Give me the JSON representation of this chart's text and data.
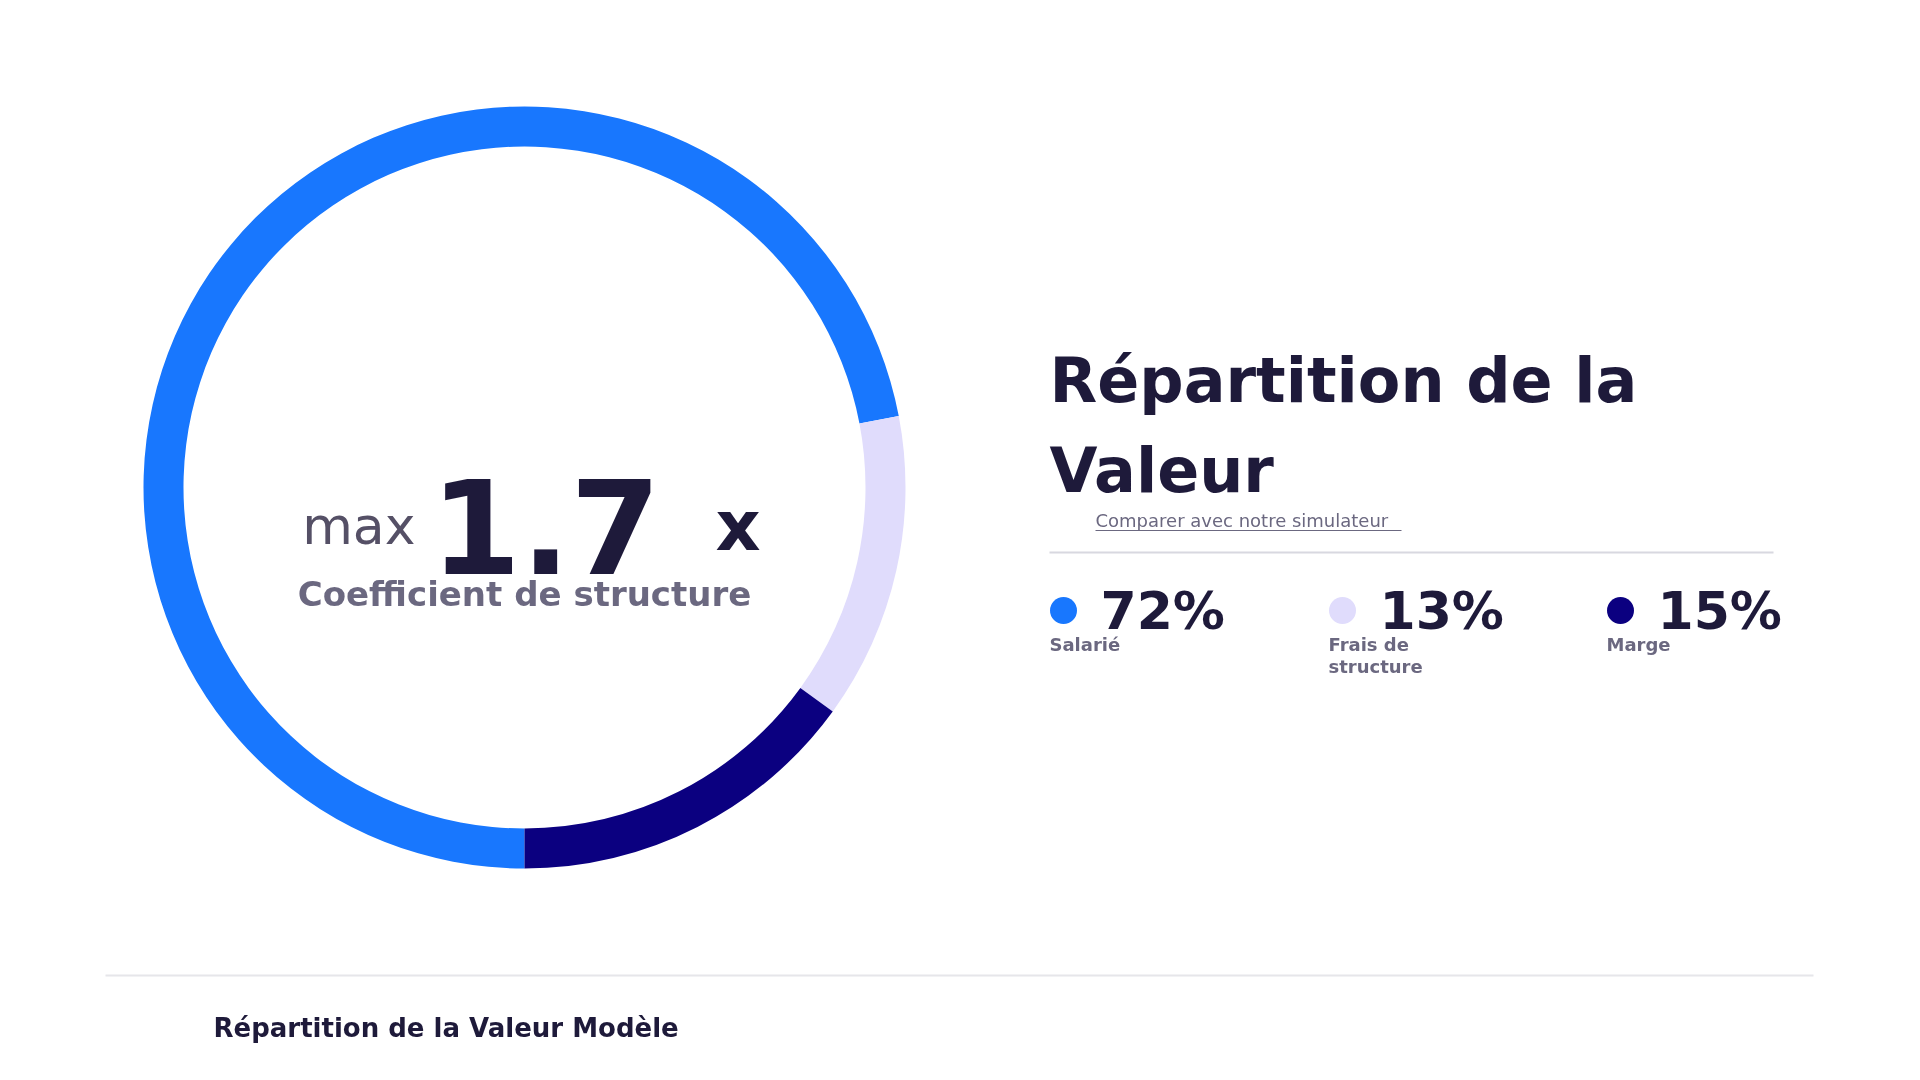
{
  "chart_data": {
    "type": "donut",
    "title": "Répartition de la Valeur",
    "categories": [
      "Salarié",
      "Frais de structure",
      "Marge"
    ],
    "values": [
      72,
      13,
      15
    ],
    "colors": [
      "#1877fe",
      "#e0dcfc",
      "#0b0080"
    ],
    "value_labels": [
      "72%",
      "13%",
      "15%"
    ],
    "legend": "right",
    "annotations": [
      "max",
      "1.7",
      "x",
      "Coefficient de structure",
      "Comparer avec notre simulateur",
      "Répartition de la Valeur Modèle"
    ]
  }
}
